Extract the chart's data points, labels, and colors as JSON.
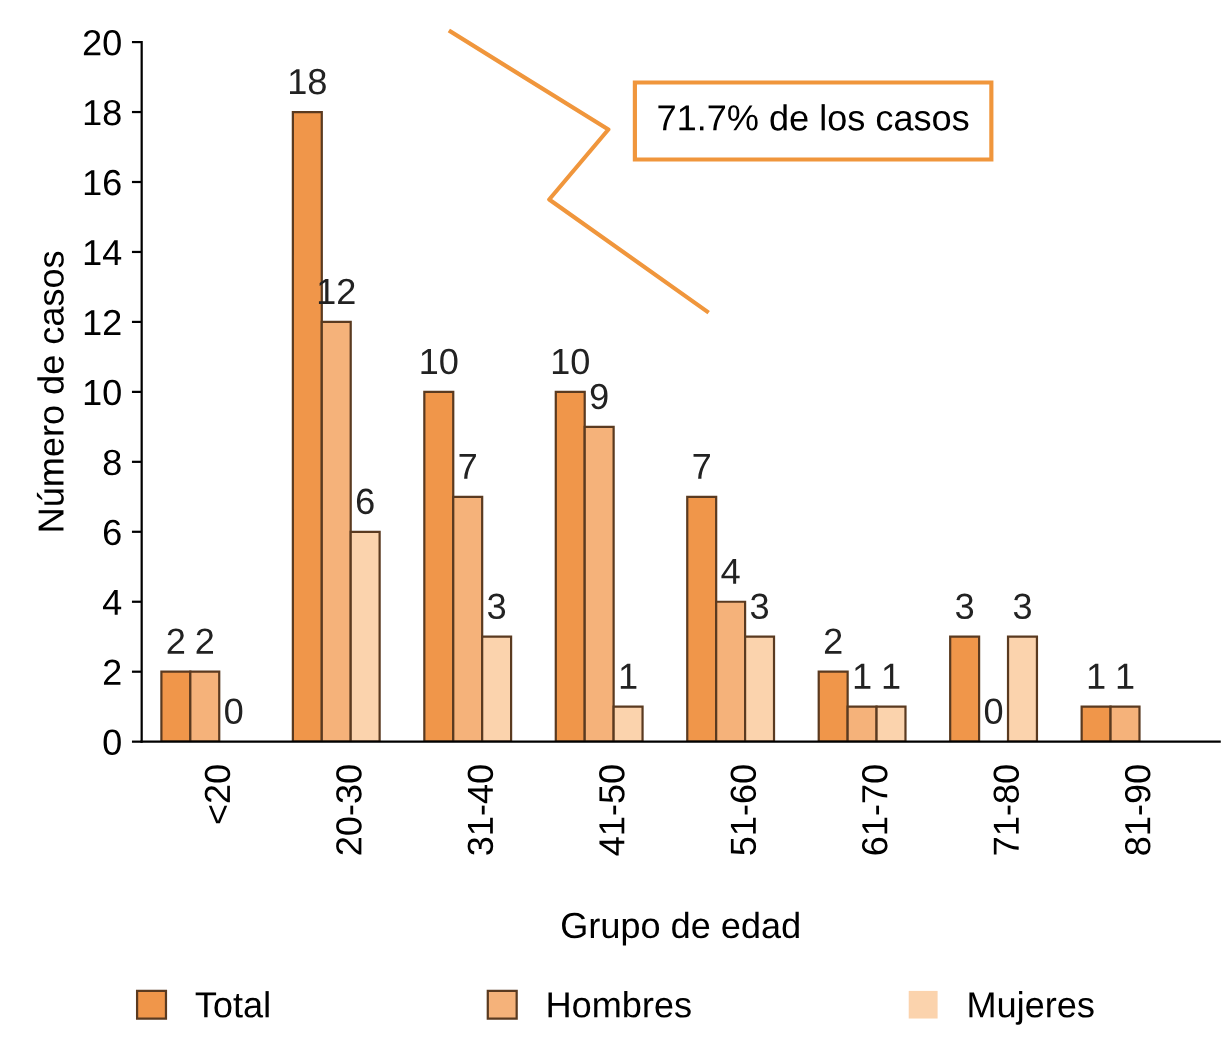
{
  "chart_data": {
    "type": "bar",
    "xlabel": "Grupo de edad",
    "ylabel": "Número de casos",
    "categories": [
      "<20",
      "20-30",
      "31-40",
      "41-50",
      "51-60",
      "61-70",
      "71-80",
      "81-90"
    ],
    "series": [
      {
        "name": "Total",
        "color": "#f0964a",
        "values": [
          2,
          18,
          10,
          10,
          7,
          2,
          3,
          1
        ]
      },
      {
        "name": "Hombres",
        "color": "#f5b27a",
        "values": [
          2,
          12,
          7,
          9,
          4,
          1,
          0,
          1
        ]
      },
      {
        "name": "Mujeres",
        "color": "#fbd3ad",
        "values": [
          0,
          6,
          3,
          1,
          3,
          1,
          3,
          null
        ]
      }
    ],
    "ylim": [
      0,
      20
    ],
    "yticks": [
      0,
      2,
      4,
      6,
      8,
      10,
      12,
      14,
      16,
      18,
      20
    ],
    "data_labels": true,
    "grid": false,
    "legend": "bottom",
    "annotations": [
      "71.7% de los casos"
    ]
  }
}
